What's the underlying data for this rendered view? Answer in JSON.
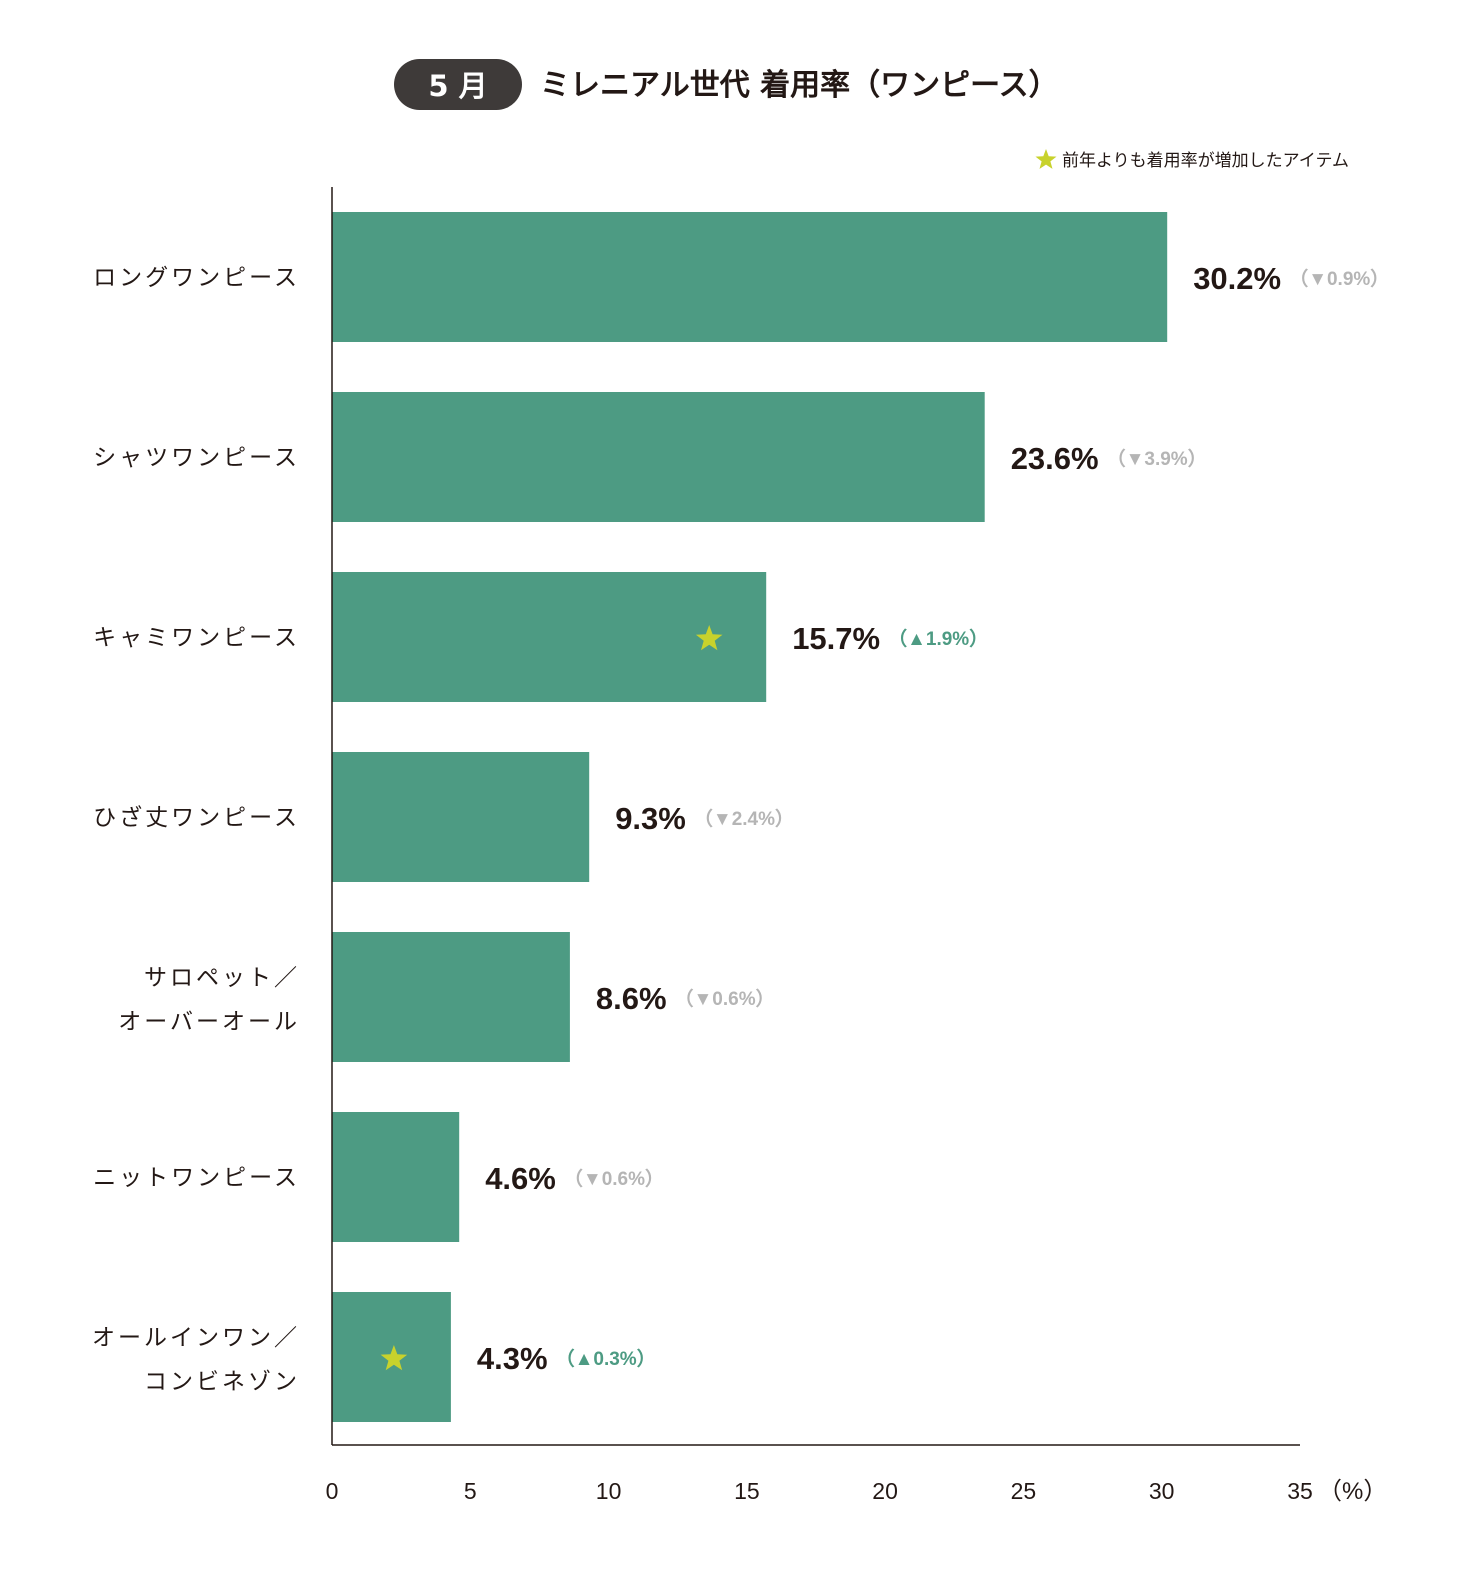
{
  "badge": {
    "label": "5 月"
  },
  "title": "ミレニアル世代 着用率（ワンピース）",
  "legend": {
    "text": "前年よりも着用率が増加したアイテム"
  },
  "colors": {
    "bar": "#4d9b83",
    "star": "#c8d22c",
    "up": "#4d9b83",
    "down": "#b5b5b5",
    "text": "#231815",
    "badge_bg": "#3e3a39",
    "axis": "#231815"
  },
  "chart_data": {
    "type": "bar",
    "orientation": "horizontal",
    "title": "ミレニアル世代 着用率（ワンピース）",
    "unit_label": "（%）",
    "xlim": [
      0,
      35
    ],
    "xticks": [
      "0",
      "5",
      "10",
      "15",
      "20",
      "25",
      "30",
      "35"
    ],
    "grid": false,
    "legend_position": "top-right",
    "categories": [
      [
        "ロングワンピース"
      ],
      [
        "シャツワンピース"
      ],
      [
        "キャミワンピース"
      ],
      [
        "ひざ丈ワンピース"
      ],
      [
        "サロペット／",
        "オーバーオール"
      ],
      [
        "ニットワンピース"
      ],
      [
        "オールインワン／",
        "コンビネゾン"
      ]
    ],
    "values": [
      30.2,
      23.6,
      15.7,
      9.3,
      8.6,
      4.6,
      4.3
    ],
    "value_labels": [
      "30.2%",
      "23.6%",
      "15.7%",
      "9.3%",
      "8.6%",
      "4.6%",
      "4.3%"
    ],
    "change_labels": [
      "（▼0.9%）",
      "（▼3.9%）",
      "（▲1.9%）",
      "（▼2.4%）",
      "（▼0.6%）",
      "（▼0.6%）",
      "（▲0.3%）"
    ],
    "change_direction": [
      "down",
      "down",
      "up",
      "down",
      "down",
      "down",
      "up"
    ],
    "increased": [
      false,
      false,
      true,
      false,
      false,
      false,
      true
    ]
  }
}
